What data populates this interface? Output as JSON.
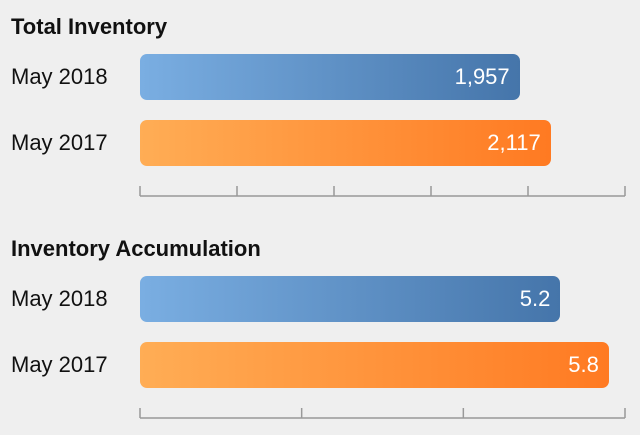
{
  "chart_data": [
    {
      "type": "bar",
      "orientation": "horizontal",
      "title": "Total Inventory",
      "categories": [
        "May 2018",
        "May 2017"
      ],
      "values": [
        1957,
        2117
      ],
      "value_labels": [
        "1,957",
        "2,117"
      ],
      "xlim": [
        0,
        2500
      ],
      "colors": [
        "#4f80b5",
        "#ff8a32"
      ],
      "grid": false,
      "legend": "none"
    },
    {
      "type": "bar",
      "orientation": "horizontal",
      "title": "Inventory Accumulation",
      "categories": [
        "May 2018",
        "May 2017"
      ],
      "values": [
        5.2,
        5.8
      ],
      "value_labels": [
        "5.2",
        "5.8"
      ],
      "xlim": [
        0,
        6
      ],
      "colors": [
        "#4f80b5",
        "#ff8a32"
      ],
      "grid": false,
      "legend": "none"
    }
  ]
}
